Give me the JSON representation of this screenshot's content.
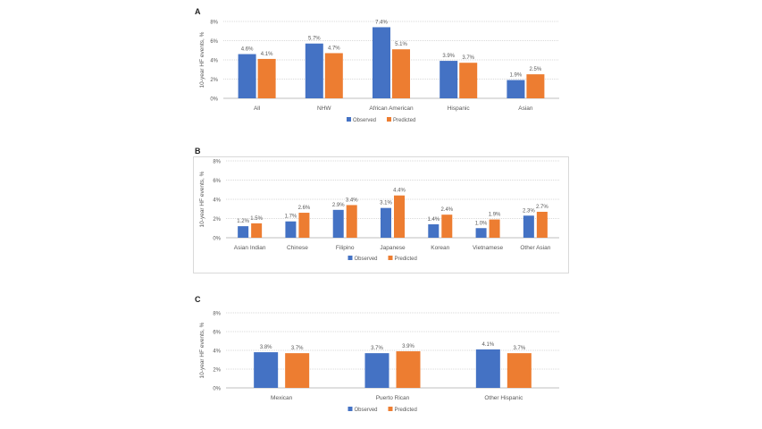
{
  "colors": {
    "observed": "#4472C4",
    "predicted": "#ED7D31",
    "grid": "#d9d9d9",
    "text": "#595959"
  },
  "chart_data": [
    {
      "panel": "A",
      "type": "bar",
      "ylabel": "10-year HF events, %",
      "ylim": [
        0,
        8
      ],
      "yticks": [
        "0%",
        "2%",
        "4%",
        "6%",
        "8%"
      ],
      "categories": [
        "All",
        "NHW",
        "African American",
        "Hispanic",
        "Asian"
      ],
      "series": [
        {
          "name": "Observed",
          "values": [
            4.6,
            5.7,
            7.4,
            3.9,
            1.9
          ],
          "labels": [
            "4.6%",
            "5.7%",
            "7.4%",
            "3.9%",
            "1.9%"
          ]
        },
        {
          "name": "Predicted",
          "values": [
            4.1,
            4.7,
            5.1,
            3.7,
            2.5
          ],
          "labels": [
            "4.1%",
            "4.7%",
            "5.1%",
            "3.7%",
            "2.5%"
          ]
        }
      ],
      "legend": "bottom",
      "grid": true
    },
    {
      "panel": "B",
      "type": "bar",
      "ylabel": "10-year HF events, %",
      "ylim": [
        0,
        8
      ],
      "yticks": [
        "0%",
        "2%",
        "4%",
        "6%",
        "8%"
      ],
      "categories": [
        "Asian Indian",
        "Chinese",
        "Filipino",
        "Japanese",
        "Korean",
        "Vietnamese",
        "Other Asian"
      ],
      "series": [
        {
          "name": "Observed",
          "values": [
            1.2,
            1.7,
            2.9,
            3.1,
            1.4,
            1.0,
            2.3
          ],
          "labels": [
            "1.2%",
            "1.7%",
            "2.9%",
            "3.1%",
            "1.4%",
            "1.0%",
            "2.3%"
          ]
        },
        {
          "name": "Predicted",
          "values": [
            1.5,
            2.6,
            3.4,
            4.4,
            2.4,
            1.9,
            2.7
          ],
          "labels": [
            "1.5%",
            "2.6%",
            "3.4%",
            "4.4%",
            "2.4%",
            "1.9%",
            "2.7%"
          ]
        }
      ],
      "legend": "bottom",
      "grid": true
    },
    {
      "panel": "C",
      "type": "bar",
      "ylabel": "10-year HF events, %",
      "ylim": [
        0,
        8
      ],
      "yticks": [
        "0%",
        "2%",
        "4%",
        "6%",
        "8%"
      ],
      "categories": [
        "Mexican",
        "Puerto Rican",
        "Other Hispanic"
      ],
      "series": [
        {
          "name": "Observed",
          "values": [
            3.8,
            3.7,
            4.1
          ],
          "labels": [
            "3.8%",
            "3.7%",
            "4.1%"
          ]
        },
        {
          "name": "Predicted",
          "values": [
            3.7,
            3.9,
            3.7
          ],
          "labels": [
            "3.7%",
            "3.9%",
            "3.7%"
          ]
        }
      ],
      "legend": "bottom",
      "grid": true
    }
  ]
}
